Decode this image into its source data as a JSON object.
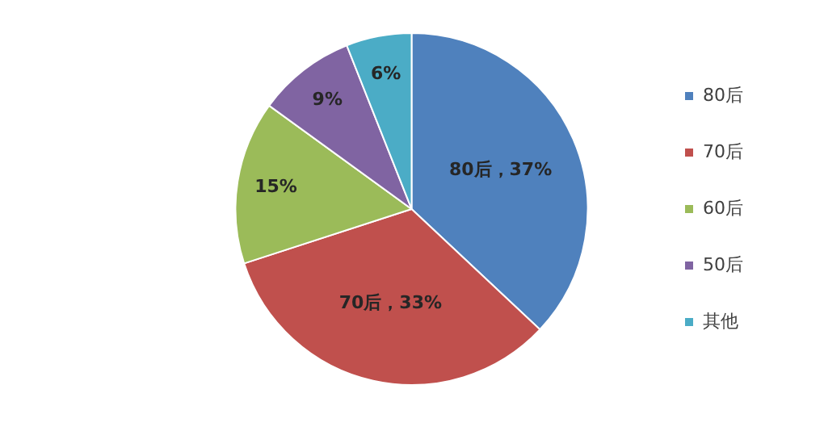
{
  "chart_data": {
    "type": "pie",
    "categories": [
      "80后",
      "70后",
      "60后",
      "50后",
      "其他"
    ],
    "values": [
      37,
      33,
      15,
      9,
      6
    ],
    "colors": [
      "#4f81bd",
      "#c0504d",
      "#9bbb59",
      "#8064a2",
      "#4bacc6"
    ],
    "value_labels": [
      "80后，37%",
      "70后，33%",
      "15%",
      "9%",
      "6%"
    ],
    "legend": "right"
  }
}
